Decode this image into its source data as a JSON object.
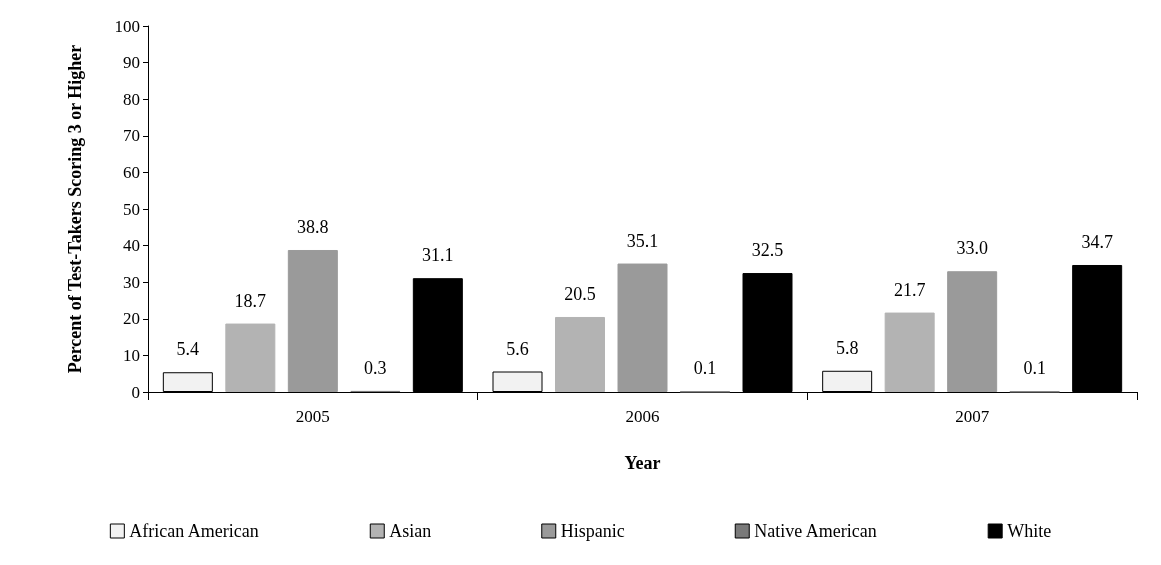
{
  "chart_data": {
    "type": "bar",
    "xlabel": "Year",
    "ylabel": "Percent of Test-Takers Scoring 3 or Higher",
    "categories": [
      "2005",
      "2006",
      "2007"
    ],
    "series": [
      {
        "name": "African American",
        "color": "#f2f2f2",
        "values": [
          5.4,
          5.6,
          5.8
        ],
        "value_labels": [
          "5.4",
          "5.6",
          "5.8"
        ]
      },
      {
        "name": "Asian",
        "color": "#b3b3b3",
        "values": [
          18.7,
          20.5,
          21.7
        ],
        "value_labels": [
          "18.7",
          "20.5",
          "21.7"
        ]
      },
      {
        "name": "Hispanic",
        "color": "#9a9a9a",
        "values": [
          38.8,
          35.1,
          33.0
        ],
        "value_labels": [
          "38.8",
          "35.1",
          "33.0"
        ]
      },
      {
        "name": "Native American",
        "color": "#7a7a7a",
        "values": [
          0.3,
          0.1,
          0.1
        ],
        "value_labels": [
          "0.3",
          "0.1",
          "0.1"
        ]
      },
      {
        "name": "White",
        "color": "#000000",
        "values": [
          31.1,
          32.5,
          34.7
        ],
        "value_labels": [
          "31.1",
          "32.5",
          "34.7"
        ]
      }
    ],
    "ylim": [
      0,
      100
    ],
    "yticks": [
      0,
      10,
      20,
      30,
      40,
      50,
      60,
      70,
      80,
      90,
      100
    ],
    "grid": false,
    "legend": "bottom"
  }
}
